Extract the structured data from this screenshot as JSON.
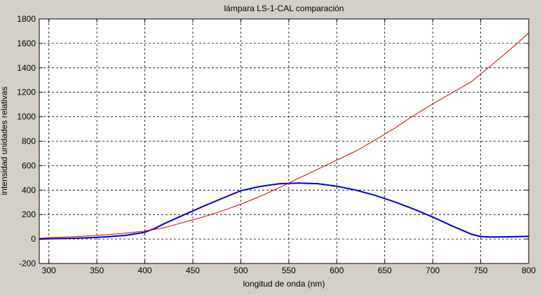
{
  "chart_data": {
    "type": "line",
    "title": "lámpara LS-1-CAL comparación",
    "xlabel": "longitud de onda (nm)",
    "ylabel": "intensidad unidades relativas",
    "xlim": [
      290,
      800
    ],
    "ylim": [
      -200,
      1800
    ],
    "xticks": [
      300,
      350,
      400,
      450,
      500,
      550,
      600,
      650,
      700,
      750,
      800
    ],
    "yticks": [
      -200,
      0,
      200,
      400,
      600,
      800,
      1000,
      1200,
      1400,
      1600,
      1800
    ],
    "grid": true,
    "grid_style": "dashed",
    "background_color": "#d4d0c8",
    "plot_background": "#ffffff",
    "series": [
      {
        "color": "#0000cc",
        "x": [
          290,
          300,
          320,
          340,
          360,
          380,
          400,
          410,
          420,
          440,
          460,
          480,
          500,
          520,
          540,
          560,
          580,
          600,
          620,
          640,
          660,
          680,
          700,
          720,
          740,
          750,
          760,
          780,
          800
        ],
        "y": [
          0,
          2,
          5,
          10,
          18,
          30,
          55,
          85,
          125,
          195,
          265,
          330,
          395,
          430,
          452,
          458,
          453,
          432,
          400,
          357,
          305,
          245,
          180,
          108,
          40,
          20,
          16,
          18,
          22
        ]
      },
      {
        "color": "#dd0000",
        "x": [
          290,
          300,
          320,
          340,
          360,
          380,
          400,
          420,
          440,
          460,
          480,
          500,
          520,
          540,
          560,
          580,
          600,
          620,
          640,
          660,
          680,
          700,
          720,
          740,
          760,
          780,
          800
        ],
        "y": [
          5,
          12,
          18,
          25,
          35,
          48,
          65,
          92,
          135,
          178,
          228,
          285,
          348,
          420,
          495,
          570,
          645,
          720,
          810,
          905,
          1010,
          1105,
          1195,
          1285,
          1415,
          1545,
          1685
        ]
      }
    ]
  }
}
